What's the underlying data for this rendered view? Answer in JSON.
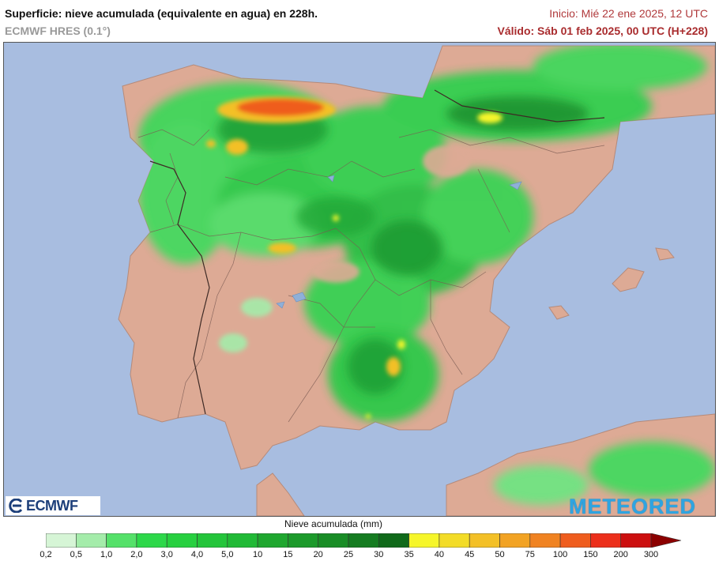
{
  "header": {
    "title": "Superficie: nieve acumulada (equivalente en agua) en 228h.",
    "subtitle": "ECMWF HRES (0.1°)",
    "init": "Inicio: Mié 22 ene 2025, 12 UTC",
    "valid": "Válido: Sáb 01 feb 2025, 00 UTC (H+228)"
  },
  "map": {
    "region": "Península Ibérica",
    "colors": {
      "sea": "#a8bde0",
      "land": "#ddaa95",
      "border": "#7a5a52",
      "water_body": "#8fb0d8"
    }
  },
  "logos": {
    "left": "ECMWF",
    "right": "METEORED"
  },
  "legend": {
    "title": "Nieve acumulada (mm)",
    "labels": [
      "0,2",
      "0,5",
      "1,0",
      "2,0",
      "3,0",
      "4,0",
      "5,0",
      "10",
      "15",
      "20",
      "25",
      "30",
      "35",
      "40",
      "45",
      "50",
      "75",
      "100",
      "150",
      "200",
      "300"
    ],
    "colors": [
      "#d6f5d6",
      "#a4ecaa",
      "#55e16a",
      "#2dd84a",
      "#27d040",
      "#24c53b",
      "#21ba36",
      "#1fa72f",
      "#1c9a2b",
      "#198d26",
      "#157c21",
      "#106a1a",
      "#f6f62a",
      "#f3dc27",
      "#f3c027",
      "#f2a324",
      "#f08322",
      "#ef5d1e",
      "#ec2f1b",
      "#cc0f0f",
      "#8b0000"
    ]
  }
}
